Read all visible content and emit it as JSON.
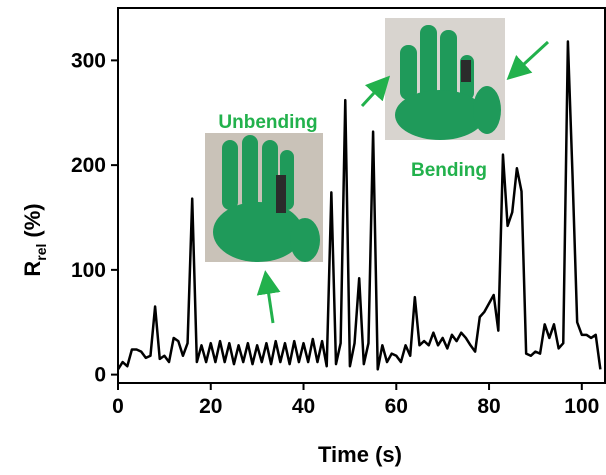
{
  "chart_data": {
    "type": "line",
    "x_label": "Time (s)",
    "y_label": "R",
    "y_label_sub": "rel",
    "y_label_unit": "(%)",
    "annotations": [
      "Unbending",
      "Bending"
    ],
    "color": "#000000",
    "x": [
      0,
      1,
      2,
      3,
      4,
      5,
      6,
      7,
      8,
      9,
      10,
      11,
      12,
      13,
      14,
      15,
      16,
      17,
      18,
      19,
      20,
      21,
      22,
      23,
      24,
      25,
      26,
      27,
      28,
      29,
      30,
      31,
      32,
      33,
      34,
      35,
      36,
      37,
      38,
      39,
      40,
      41,
      42,
      43,
      44,
      45,
      46,
      47,
      48,
      49,
      50,
      51,
      52,
      53,
      54,
      55,
      56,
      57,
      58,
      59,
      60,
      61,
      62,
      63,
      64,
      65,
      66,
      67,
      68,
      69,
      70,
      71,
      72,
      73,
      74,
      75,
      76,
      77,
      78,
      79,
      80,
      81,
      82,
      83,
      84,
      85,
      86,
      87,
      88,
      89,
      90,
      91,
      92,
      93,
      94,
      95,
      96,
      97,
      98,
      99,
      100,
      101,
      102,
      103,
      104
    ],
    "values": [
      5,
      12,
      8,
      24,
      24,
      22,
      16,
      18,
      65,
      15,
      18,
      12,
      35,
      32,
      18,
      30,
      168,
      12,
      28,
      12,
      30,
      12,
      32,
      12,
      30,
      10,
      28,
      12,
      30,
      10,
      28,
      12,
      30,
      10,
      32,
      12,
      30,
      10,
      32,
      12,
      30,
      12,
      34,
      12,
      32,
      8,
      174,
      10,
      30,
      262,
      8,
      30,
      92,
      10,
      30,
      232,
      5,
      28,
      12,
      20,
      18,
      12,
      28,
      18,
      74,
      28,
      32,
      28,
      40,
      28,
      35,
      25,
      38,
      32,
      40,
      35,
      28,
      22,
      55,
      60,
      68,
      76,
      42,
      210,
      142,
      155,
      197,
      175,
      20,
      18,
      22,
      20,
      48,
      35,
      48,
      25,
      30,
      318,
      190,
      50,
      38,
      38,
      35,
      38,
      5
    ],
    "xlim": [
      0,
      105
    ],
    "ylim": [
      -8,
      350
    ],
    "xticks": [
      0,
      20,
      40,
      60,
      80,
      100
    ],
    "yticks": [
      0,
      100,
      200,
      300
    ]
  }
}
